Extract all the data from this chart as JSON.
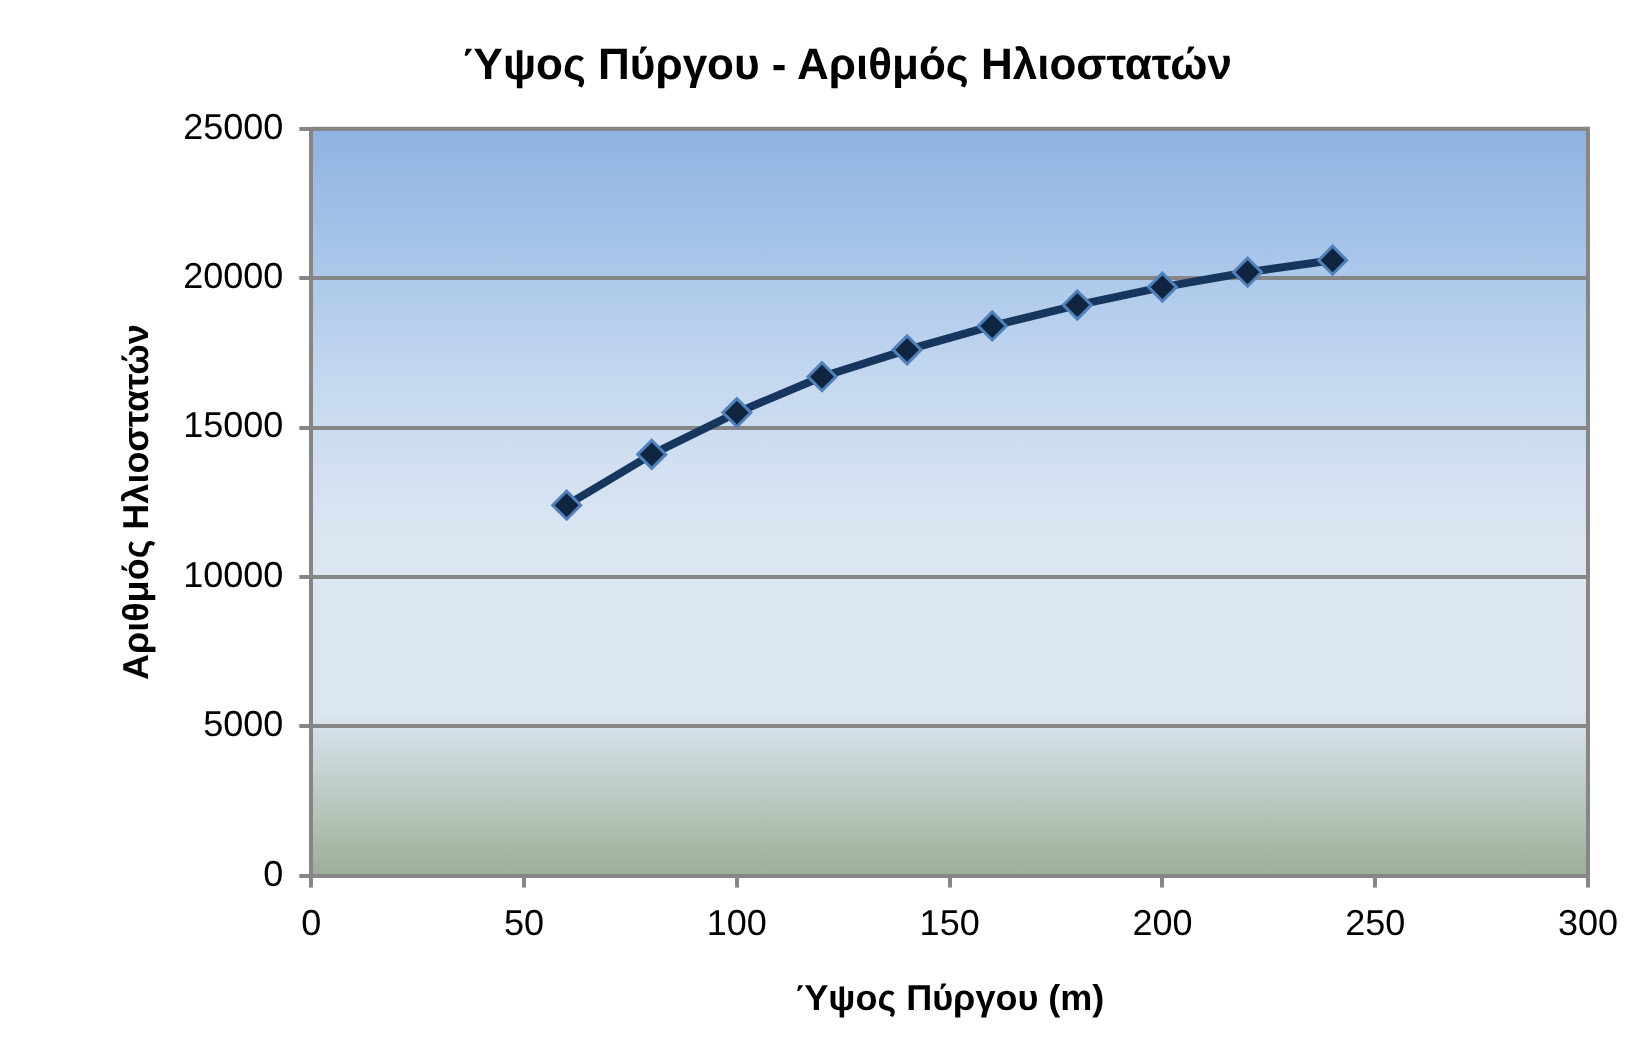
{
  "chart_data": {
    "type": "line",
    "title": "Ύψος Πύργου - Αριθμός Ηλιοστατών",
    "xlabel": "Ύψος Πύργου (m)",
    "ylabel": "Αριθμός Ηλιοστατών",
    "x": [
      60,
      80,
      100,
      120,
      140,
      160,
      180,
      200,
      220,
      240
    ],
    "series": [
      {
        "color": "#17365d",
        "values": [
          12400,
          14100,
          15500,
          16700,
          17600,
          18400,
          19100,
          19700,
          20200,
          20600
        ]
      }
    ],
    "xlim": [
      0,
      300
    ],
    "xticks": [
      0,
      50,
      100,
      150,
      200,
      250,
      300
    ],
    "ylim": [
      0,
      25000
    ],
    "yticks": [
      0,
      5000,
      10000,
      15000,
      20000,
      25000
    ],
    "grid": "y",
    "legend": false,
    "marker": "diamond",
    "line_style": "solid"
  }
}
